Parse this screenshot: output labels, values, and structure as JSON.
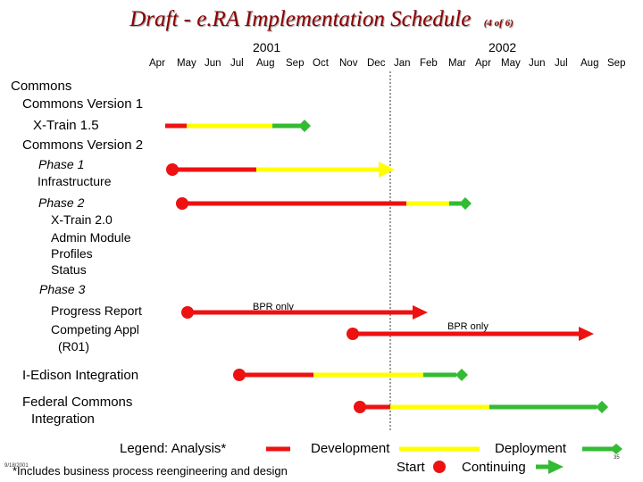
{
  "title": "Draft - e.RA Implementation Schedule",
  "title_sub": "(4 of 6)",
  "years": [
    "2001",
    "2002"
  ],
  "months": [
    "Apr",
    "May",
    "Jun",
    "Jul",
    "Aug",
    "Sep",
    "Oct",
    "Nov",
    "Dec",
    "Jan",
    "Feb",
    "Mar",
    "Apr",
    "May",
    "Jun",
    "Jul",
    "Aug",
    "Sep"
  ],
  "rows": {
    "commons": "Commons",
    "commons_v1": "Commons Version 1",
    "xtrain15": "X-Train 1.5",
    "commons_v2": "Commons Version 2",
    "phase1": "Phase 1",
    "infrastructure": "Infrastructure",
    "phase2": "Phase 2",
    "xtrain20": "X-Train 2.0",
    "admin_module": "Admin Module",
    "profiles": "Profiles",
    "status": "Status",
    "phase3": "Phase 3",
    "progress_report": "Progress Report",
    "competing_appl": "Competing Appl",
    "r01": "(R01)",
    "iedison": "I-Edison Integration",
    "federal_commons": "Federal Commons",
    "integration": "Integration"
  },
  "annotations": {
    "bpr1": "BPR only",
    "bpr2": "BPR only"
  },
  "legend": {
    "legend_label": "Legend:",
    "analysis": "Analysis*",
    "development": "Development",
    "deployment": "Deployment",
    "start": "Start",
    "continuing": "Continuing",
    "footnote": "*Includes business process reengineering and design"
  },
  "footer": {
    "date": "9/18/2001",
    "page": "35"
  },
  "colors": {
    "analysis": "#ee1111",
    "development": "#ffff00",
    "deployment": "#33bb33",
    "title": "#8b0000"
  }
}
